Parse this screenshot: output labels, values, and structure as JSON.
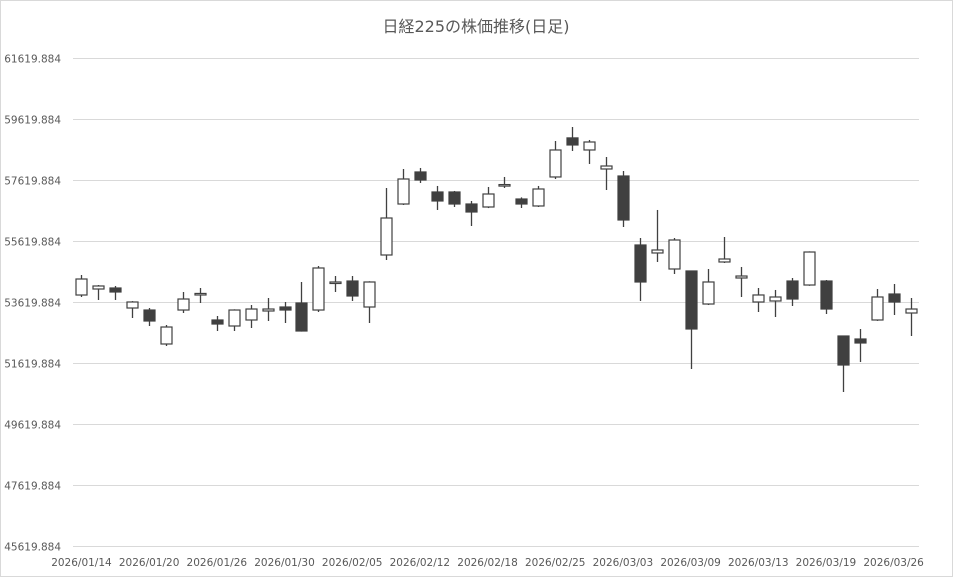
{
  "chart_data": {
    "type": "candlestick",
    "title": "日経225の株価推移(日足)",
    "xlabel": "",
    "ylabel": "",
    "ylim": [
      45619.884,
      61619.884
    ],
    "ytick_step": 2000,
    "yticks": [
      "45619.884",
      "47619.884",
      "49619.884",
      "51619.884",
      "53619.884",
      "55619.884",
      "57619.884",
      "59619.884",
      "61619.884"
    ],
    "grid": true,
    "legend": "none",
    "colors": {
      "up_fill": "#ffffff",
      "down_fill": "#404040",
      "line": "#404040",
      "grid": "#d9d9d9",
      "text": "#595959"
    },
    "xtick_labels": [
      "2026/01/14",
      "2026/01/20",
      "2026/01/26",
      "2026/01/30",
      "2026/02/05",
      "2026/02/12",
      "2026/02/18",
      "2026/02/25",
      "2026/03/03",
      "2026/03/09",
      "2026/03/13",
      "2026/03/19",
      "2026/03/26"
    ],
    "xtick_every": 4,
    "ohlc": [
      [
        53849,
        54505,
        53784,
        54374
      ],
      [
        54046,
        54177,
        53686,
        54145
      ],
      [
        54079,
        54145,
        53686,
        53948
      ],
      [
        53423,
        53650,
        53095,
        53620
      ],
      [
        53357,
        53423,
        52833,
        52997
      ],
      [
        52243,
        52866,
        52177,
        52800
      ],
      [
        53357,
        53948,
        53259,
        53718
      ],
      [
        53850,
        54079,
        53587,
        53900
      ],
      [
        53030,
        53161,
        52669,
        52898
      ],
      [
        52833,
        53380,
        52669,
        53357
      ],
      [
        53030,
        53521,
        52767,
        53390
      ],
      [
        53325,
        53751,
        52997,
        53390
      ],
      [
        53456,
        53620,
        52931,
        53357
      ],
      [
        53587,
        54276,
        52650,
        52669
      ],
      [
        53357,
        54800,
        53292,
        54735
      ],
      [
        54250,
        54472,
        53948,
        54276
      ],
      [
        54308,
        54472,
        53653,
        53817
      ],
      [
        53456,
        54300,
        52931,
        54276
      ],
      [
        55161,
        57358,
        54997,
        56374
      ],
      [
        56833,
        57981,
        56800,
        57653
      ],
      [
        57883,
        58014,
        57522,
        57620
      ],
      [
        57227,
        57424,
        56637,
        56932
      ],
      [
        57227,
        57260,
        56735,
        56833
      ],
      [
        56833,
        56932,
        56112,
        56571
      ],
      [
        56735,
        57391,
        56700,
        57161
      ],
      [
        57440,
        57719,
        57358,
        57470
      ],
      [
        56997,
        57050,
        56702,
        56833
      ],
      [
        56768,
        57424,
        56735,
        57325
      ],
      [
        57719,
        58899,
        57653,
        58604
      ],
      [
        59000,
        59358,
        58571,
        58768
      ],
      [
        58604,
        58932,
        58145,
        58866
      ],
      [
        57981,
        58374,
        57292,
        58079
      ],
      [
        57751,
        57915,
        56079,
        56309
      ],
      [
        55489,
        55718,
        53653,
        54276
      ],
      [
        55227,
        56637,
        54932,
        55325
      ],
      [
        54702,
        55718,
        54538,
        55653
      ],
      [
        54637,
        54637,
        51423,
        52735
      ],
      [
        53554,
        54702,
        53521,
        54276
      ],
      [
        54932,
        55751,
        54899,
        55030
      ],
      [
        54407,
        54768,
        53784,
        54472
      ],
      [
        53620,
        54079,
        53292,
        53850
      ],
      [
        53653,
        54014,
        53128,
        53784
      ],
      [
        54308,
        54407,
        53489,
        53718
      ],
      [
        54177,
        55280,
        54150,
        55259
      ],
      [
        54308,
        54341,
        53226,
        53390
      ],
      [
        52505,
        52505,
        50669,
        51554
      ],
      [
        52407,
        52734,
        51652,
        52276
      ],
      [
        53030,
        54046,
        53000,
        53784
      ],
      [
        53882,
        54210,
        53194,
        53620
      ],
      [
        53259,
        53751,
        52505,
        53390
      ]
    ]
  }
}
